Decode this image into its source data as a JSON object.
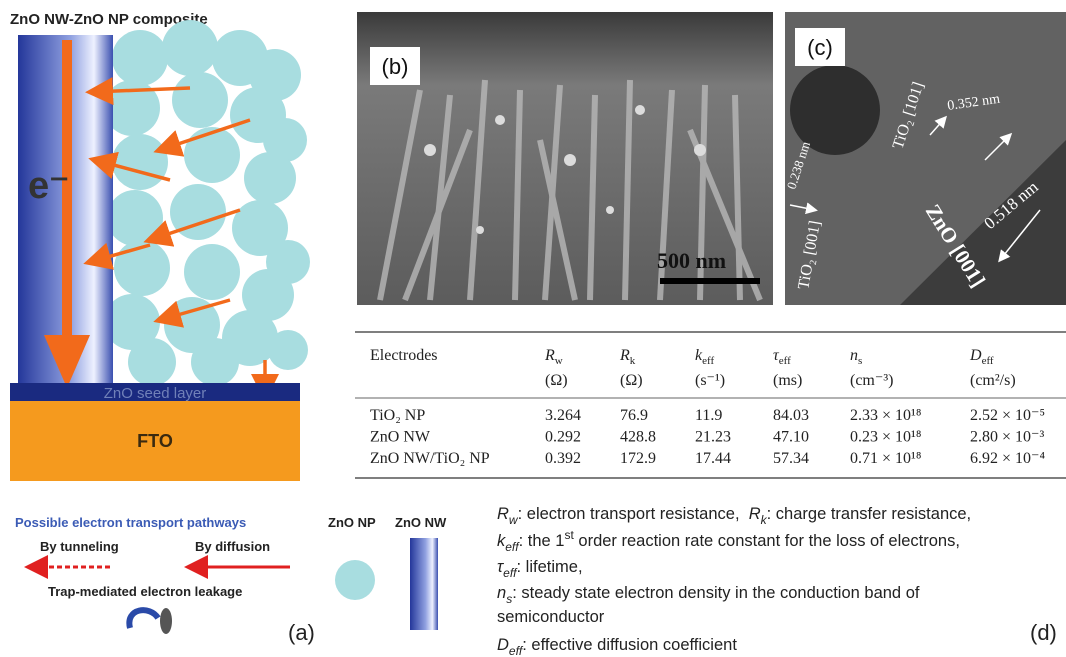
{
  "panel_a": {
    "title": "ZnO NW-ZnO NP composite",
    "electron_label": "e⁻",
    "seed_layer": "ZnO seed layer",
    "substrate": "FTO",
    "legend": {
      "title": "Possible electron transport pathways",
      "tunneling": "By tunneling",
      "diffusion": "By diffusion",
      "leakage": "Trap-mediated electron leakage",
      "np": "ZnO NP",
      "nw": "ZnO NW"
    },
    "label": "(a)"
  },
  "panel_b": {
    "label": "(b)",
    "scale_bar": "500 nm"
  },
  "panel_c": {
    "label": "(c)",
    "annotations": [
      "TiO₂ [101]",
      "0.352 nm",
      "0.238 nm",
      "TiO₂ [001]",
      "0.518 nm",
      "ZnO [001]"
    ]
  },
  "panel_d": {
    "table": {
      "columns": [
        {
          "name": "Electrodes"
        },
        {
          "symbol": "R",
          "sub": "w",
          "unit": "(Ω)"
        },
        {
          "symbol": "R",
          "sub": "k",
          "unit": "(Ω)"
        },
        {
          "symbol": "k",
          "sub": "eff",
          "unit": "(s⁻¹)"
        },
        {
          "symbol": "τ",
          "sub": "eff",
          "unit": "(ms)"
        },
        {
          "symbol": "n",
          "sub": "s",
          "unit": "(cm⁻³)"
        },
        {
          "symbol": "D",
          "sub": "eff",
          "unit": "(cm²/s)"
        }
      ],
      "rows": [
        [
          "TiO₂ NP",
          "3.264",
          "76.9",
          "11.9",
          "84.03",
          "2.33 × 10¹⁸",
          "2.52 × 10⁻⁵"
        ],
        [
          "ZnO NW",
          "0.292",
          "428.8",
          "21.23",
          "47.10",
          "0.23 × 10¹⁸",
          "2.80 × 10⁻³"
        ],
        [
          "ZnO NW/TiO₂ NP",
          "0.392",
          "172.9",
          "17.44",
          "57.34",
          "0.71 × 10¹⁸",
          "6.92 × 10⁻⁴"
        ]
      ]
    },
    "notes": [
      [
        {
          "text": "R",
          "kind": "sym"
        },
        {
          "text": "w",
          "kind": "sub"
        },
        {
          "text": ": electron transport resistance,  "
        },
        {
          "text": "R",
          "kind": "sym"
        },
        {
          "text": "k",
          "kind": "sub"
        },
        {
          "text": ": charge transfer resistance,"
        }
      ],
      [
        {
          "text": "k",
          "kind": "sym"
        },
        {
          "text": "eff",
          "kind": "sub"
        },
        {
          "text": ": the 1"
        },
        {
          "text": "st",
          "kind": "sup"
        },
        {
          "text": " order reaction rate constant for the loss of electrons,"
        }
      ],
      [
        {
          "text": "τ",
          "kind": "sym"
        },
        {
          "text": "eff",
          "kind": "sub"
        },
        {
          "text": ": lifetime,"
        }
      ],
      [
        {
          "text": "n",
          "kind": "sym"
        },
        {
          "text": "s",
          "kind": "sub"
        },
        {
          "text": ": steady state electron density in the conduction band of"
        }
      ],
      [
        {
          "text": "semiconductor"
        }
      ],
      [
        {
          "text": "D",
          "kind": "sym"
        },
        {
          "text": "eff",
          "kind": "sub"
        },
        {
          "text": ": effective diffusion coefficient"
        }
      ]
    ],
    "label": "(d)"
  }
}
